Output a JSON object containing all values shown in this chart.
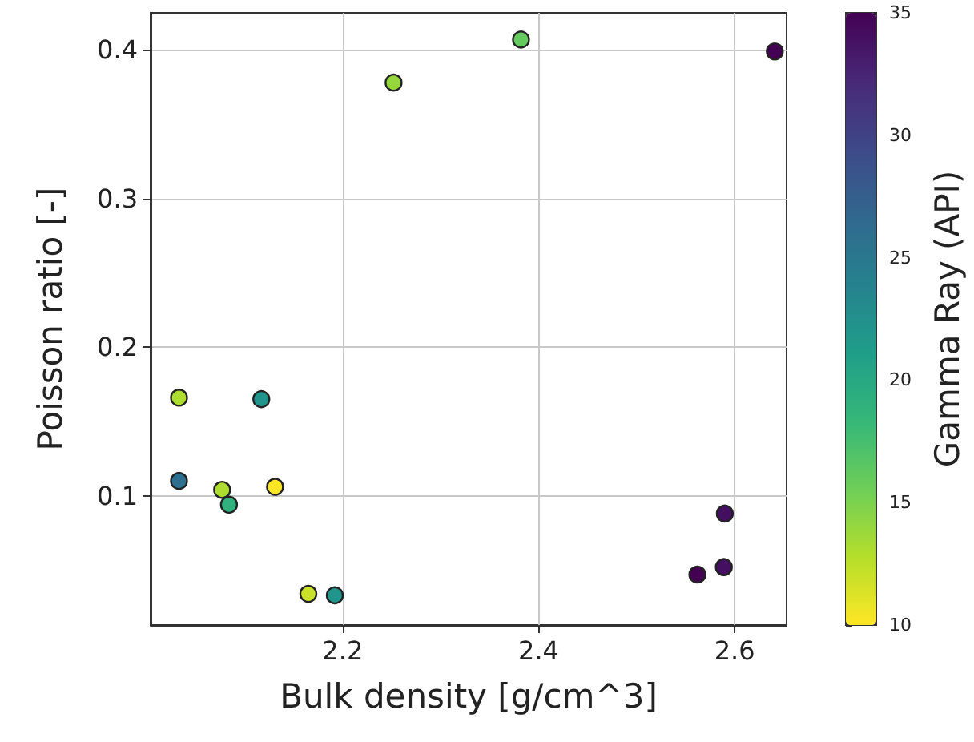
{
  "chart_data": {
    "type": "scatter",
    "xlabel": "Bulk density [g/cm^3]",
    "ylabel": "Poisson ratio [-]",
    "clabel": "Gamma Ray (API)",
    "x": [
      2.252,
      2.382,
      2.641,
      2.033,
      2.117,
      2.033,
      2.077,
      2.131,
      2.084,
      2.165,
      2.192,
      2.562,
      2.589,
      2.59
    ],
    "values": [
      0.378,
      0.407,
      0.399,
      0.166,
      0.165,
      0.11,
      0.104,
      0.106,
      0.094,
      0.034,
      0.033,
      0.047,
      0.052,
      0.088
    ],
    "cvalues": [
      14,
      16,
      35,
      13,
      22,
      26,
      13,
      10,
      19,
      12,
      22,
      35,
      34,
      34
    ],
    "xlim": [
      2.004,
      2.653
    ],
    "ylim": [
      0.013,
      0.425
    ],
    "xticks": [
      2.2,
      2.4,
      2.6
    ],
    "yticks": [
      0.1,
      0.2,
      0.3,
      0.4
    ],
    "clim": [
      10,
      35
    ],
    "cticks": [
      10,
      15,
      20,
      25,
      30,
      35
    ],
    "grid": true,
    "marker": "circle"
  }
}
